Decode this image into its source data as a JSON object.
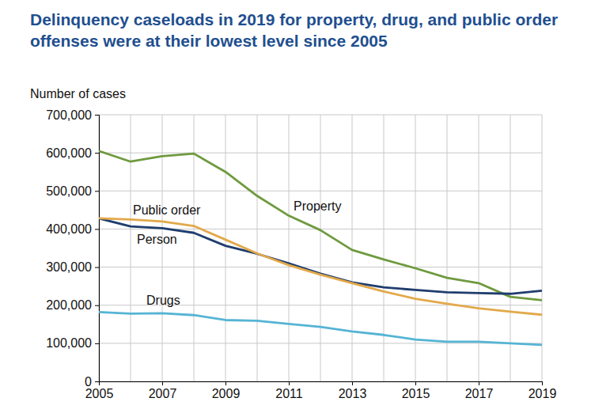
{
  "chart_data": {
    "type": "line",
    "title": "Delinquency caseloads in 2019 for property, drug, and public order offenses were at their lowest level since 2005",
    "ylabel": "Number of cases",
    "x": [
      2005,
      2006,
      2007,
      2008,
      2009,
      2010,
      2011,
      2012,
      2013,
      2014,
      2015,
      2016,
      2017,
      2018,
      2019
    ],
    "xlim": [
      2005,
      2019
    ],
    "xticks": [
      2005,
      2007,
      2009,
      2011,
      2013,
      2015,
      2017,
      2019
    ],
    "ylim": [
      0,
      700000
    ],
    "yticks": [
      0,
      {
        "value": 100000,
        "label": "100,000"
      },
      {
        "value": 200000,
        "label": "200,000"
      },
      {
        "value": 300000,
        "label": "300,000"
      },
      {
        "value": 400000,
        "label": "400,000"
      },
      {
        "value": 500000,
        "label": "500,000"
      },
      {
        "value": 600000,
        "label": "600,000"
      },
      {
        "value": 700000,
        "label": "700,000"
      }
    ],
    "grid": true,
    "series": [
      {
        "name": "Property",
        "color": "#6f9a3f",
        "values": [
          605000,
          577000,
          591000,
          598000,
          550000,
          487000,
          435000,
          397000,
          345000,
          320000,
          297000,
          272000,
          258000,
          222000,
          213000
        ]
      },
      {
        "name": "Person",
        "color": "#1f3d6e",
        "values": [
          428000,
          407000,
          402000,
          390000,
          356000,
          335000,
          310000,
          283000,
          260000,
          247000,
          240000,
          234000,
          232000,
          230000,
          238000
        ]
      },
      {
        "name": "Public order",
        "color": "#e2a94a",
        "values": [
          428000,
          425000,
          420000,
          408000,
          372000,
          336000,
          305000,
          280000,
          258000,
          236000,
          217000,
          204000,
          192000,
          183000,
          175000
        ]
      },
      {
        "name": "Drugs",
        "color": "#55b4d4",
        "values": [
          182000,
          178000,
          179000,
          174000,
          161000,
          159000,
          151000,
          143000,
          131000,
          122000,
          110000,
          104000,
          104000,
          100000,
          96000
        ]
      }
    ]
  }
}
